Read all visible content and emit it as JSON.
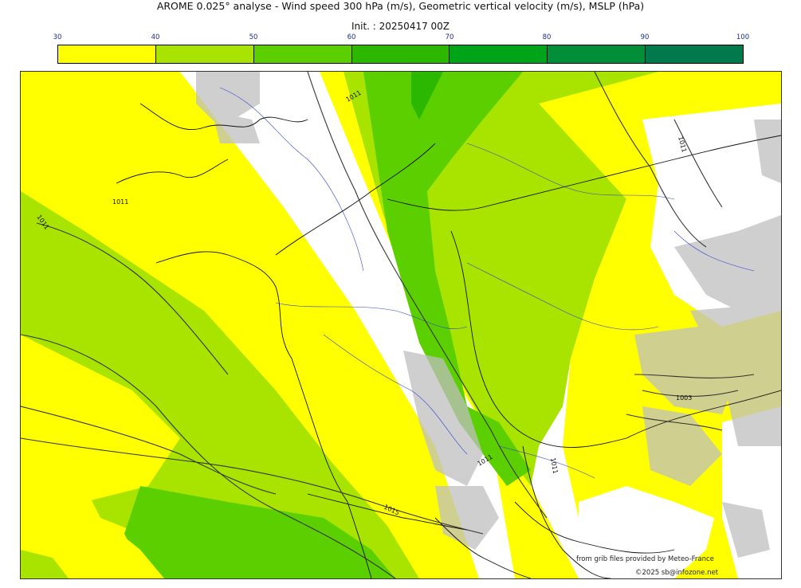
{
  "header": {
    "title": "AROME 0.025° analyse - Wind speed 300 hPa (m/s), Geometric vertical velocity (m/s), MSLP (hPa)",
    "init": "Init. : 20250417 00Z"
  },
  "colorbar": {
    "ticks": [
      "30",
      "40",
      "50",
      "60",
      "70",
      "80",
      "90",
      "100"
    ],
    "colors": [
      "#ffff00",
      "#a8e400",
      "#5ccf00",
      "#2db800",
      "#00a418",
      "#008f38",
      "#007a4c"
    ]
  },
  "isobar_labels": [
    "1011",
    "1011",
    "1011",
    "1011",
    "1011",
    "1011",
    "1015",
    "1003"
  ],
  "credits": {
    "source": "from grib files provided by Meteo-France",
    "copyright": "©2025 sb@infozone.net"
  }
}
